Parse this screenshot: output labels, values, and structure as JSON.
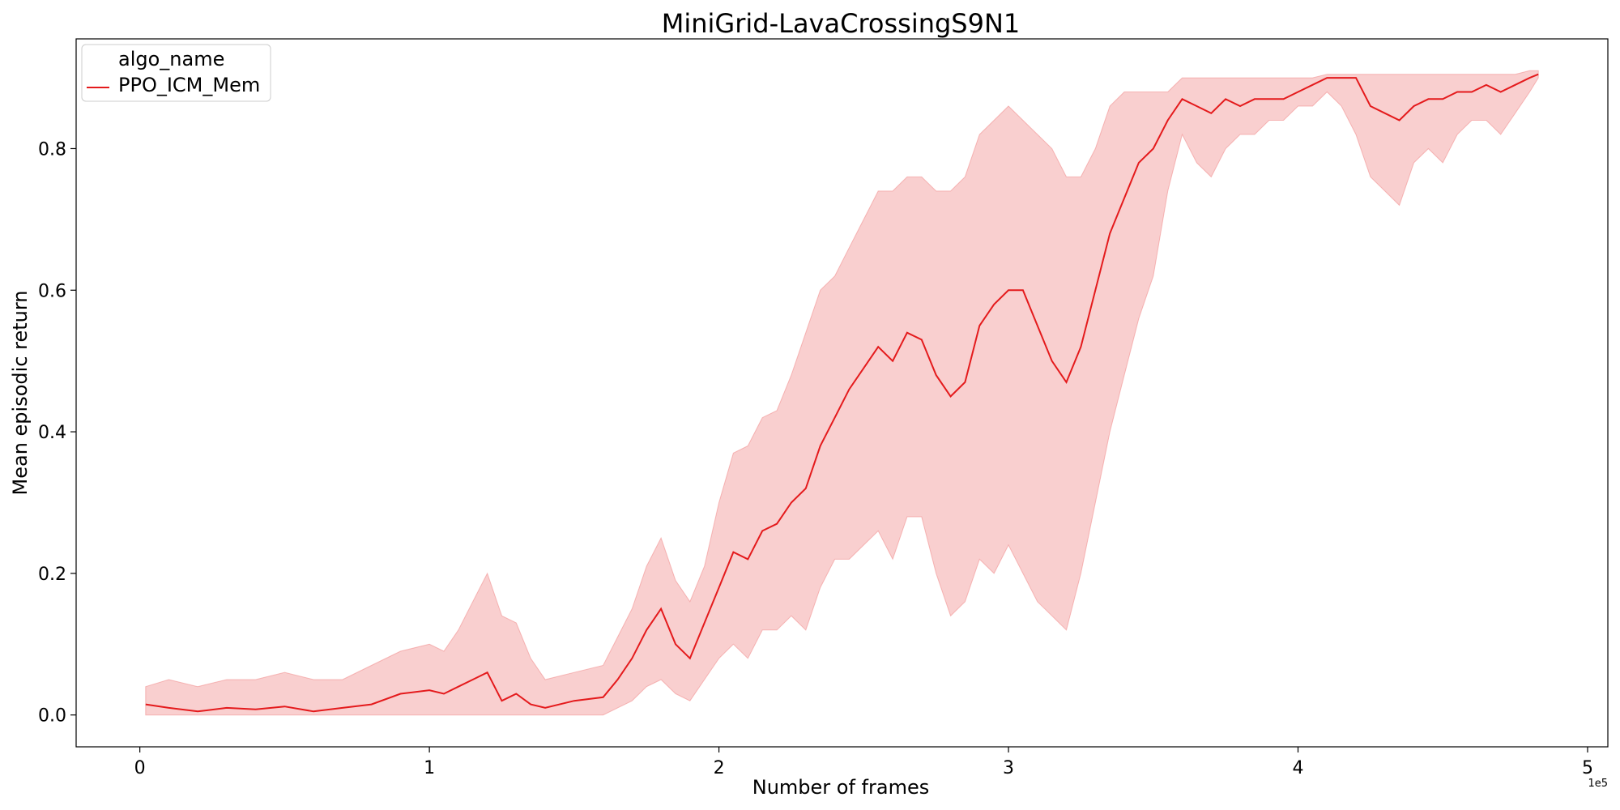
{
  "chart_data": {
    "type": "line",
    "title": "MiniGrid-LavaCrossingS9N1",
    "xlabel": "Number of frames",
    "ylabel": "Mean episodic return",
    "x_offset_label": "1e5",
    "x_scale": 100000,
    "xlim": [
      -0.22,
      5.07
    ],
    "ylim": [
      -0.045,
      0.955
    ],
    "x_ticks": [
      0,
      1,
      2,
      3,
      4,
      5
    ],
    "x_tick_labels": [
      "0",
      "1",
      "2",
      "3",
      "4",
      "5"
    ],
    "y_ticks": [
      0.0,
      0.2,
      0.4,
      0.6,
      0.8
    ],
    "y_tick_labels": [
      "0.0",
      "0.2",
      "0.4",
      "0.6",
      "0.8"
    ],
    "grid": false,
    "legend": {
      "title": "algo_name",
      "location": "upper-left"
    },
    "series": [
      {
        "name": "PPO_ICM_Mem",
        "color": "#e41a1c",
        "band_color": "#f08080",
        "x": [
          0.02,
          0.1,
          0.2,
          0.3,
          0.4,
          0.5,
          0.6,
          0.7,
          0.8,
          0.9,
          1.0,
          1.05,
          1.1,
          1.15,
          1.2,
          1.25,
          1.3,
          1.35,
          1.4,
          1.5,
          1.6,
          1.65,
          1.7,
          1.75,
          1.8,
          1.85,
          1.9,
          1.95,
          2.0,
          2.05,
          2.1,
          2.15,
          2.2,
          2.25,
          2.3,
          2.35,
          2.4,
          2.45,
          2.5,
          2.55,
          2.6,
          2.65,
          2.7,
          2.75,
          2.8,
          2.85,
          2.9,
          2.95,
          3.0,
          3.05,
          3.1,
          3.15,
          3.2,
          3.25,
          3.3,
          3.35,
          3.4,
          3.45,
          3.5,
          3.55,
          3.6,
          3.65,
          3.7,
          3.75,
          3.8,
          3.85,
          3.9,
          3.95,
          4.0,
          4.05,
          4.1,
          4.15,
          4.2,
          4.25,
          4.3,
          4.35,
          4.4,
          4.45,
          4.5,
          4.55,
          4.6,
          4.65,
          4.7,
          4.75,
          4.8,
          4.83
        ],
        "y": [
          0.015,
          0.01,
          0.005,
          0.01,
          0.008,
          0.012,
          0.005,
          0.01,
          0.015,
          0.03,
          0.035,
          0.03,
          0.04,
          0.05,
          0.06,
          0.02,
          0.03,
          0.015,
          0.01,
          0.02,
          0.025,
          0.05,
          0.08,
          0.12,
          0.15,
          0.1,
          0.08,
          0.13,
          0.18,
          0.23,
          0.22,
          0.26,
          0.27,
          0.3,
          0.32,
          0.38,
          0.42,
          0.46,
          0.49,
          0.52,
          0.5,
          0.54,
          0.53,
          0.48,
          0.45,
          0.47,
          0.55,
          0.58,
          0.6,
          0.6,
          0.55,
          0.5,
          0.47,
          0.52,
          0.6,
          0.68,
          0.73,
          0.78,
          0.8,
          0.84,
          0.87,
          0.86,
          0.85,
          0.87,
          0.86,
          0.87,
          0.87,
          0.87,
          0.88,
          0.89,
          0.9,
          0.9,
          0.9,
          0.86,
          0.85,
          0.84,
          0.86,
          0.87,
          0.87,
          0.88,
          0.88,
          0.89,
          0.88,
          0.89,
          0.9,
          0.905
        ],
        "lower": [
          0.0,
          0.0,
          0.0,
          0.0,
          0.0,
          0.0,
          0.0,
          0.0,
          0.0,
          0.0,
          0.0,
          0.0,
          0.0,
          0.0,
          0.0,
          0.0,
          0.0,
          0.0,
          0.0,
          0.0,
          0.0,
          0.01,
          0.02,
          0.04,
          0.05,
          0.03,
          0.02,
          0.05,
          0.08,
          0.1,
          0.08,
          0.12,
          0.12,
          0.14,
          0.12,
          0.18,
          0.22,
          0.22,
          0.24,
          0.26,
          0.22,
          0.28,
          0.28,
          0.2,
          0.14,
          0.16,
          0.22,
          0.2,
          0.24,
          0.2,
          0.16,
          0.14,
          0.12,
          0.2,
          0.3,
          0.4,
          0.48,
          0.56,
          0.62,
          0.74,
          0.82,
          0.78,
          0.76,
          0.8,
          0.82,
          0.82,
          0.84,
          0.84,
          0.86,
          0.86,
          0.88,
          0.86,
          0.82,
          0.76,
          0.74,
          0.72,
          0.78,
          0.8,
          0.78,
          0.82,
          0.84,
          0.84,
          0.82,
          0.85,
          0.88,
          0.9
        ],
        "upper": [
          0.04,
          0.05,
          0.04,
          0.05,
          0.05,
          0.06,
          0.05,
          0.05,
          0.07,
          0.09,
          0.1,
          0.09,
          0.12,
          0.16,
          0.2,
          0.14,
          0.13,
          0.08,
          0.05,
          0.06,
          0.07,
          0.11,
          0.15,
          0.21,
          0.25,
          0.19,
          0.16,
          0.21,
          0.3,
          0.37,
          0.38,
          0.42,
          0.43,
          0.48,
          0.54,
          0.6,
          0.62,
          0.66,
          0.7,
          0.74,
          0.74,
          0.76,
          0.76,
          0.74,
          0.74,
          0.76,
          0.82,
          0.84,
          0.86,
          0.84,
          0.82,
          0.8,
          0.76,
          0.76,
          0.8,
          0.86,
          0.88,
          0.88,
          0.88,
          0.88,
          0.9,
          0.9,
          0.9,
          0.9,
          0.9,
          0.9,
          0.9,
          0.9,
          0.9,
          0.9,
          0.905,
          0.905,
          0.905,
          0.905,
          0.905,
          0.905,
          0.905,
          0.905,
          0.905,
          0.905,
          0.905,
          0.905,
          0.905,
          0.905,
          0.91,
          0.91
        ]
      }
    ]
  }
}
